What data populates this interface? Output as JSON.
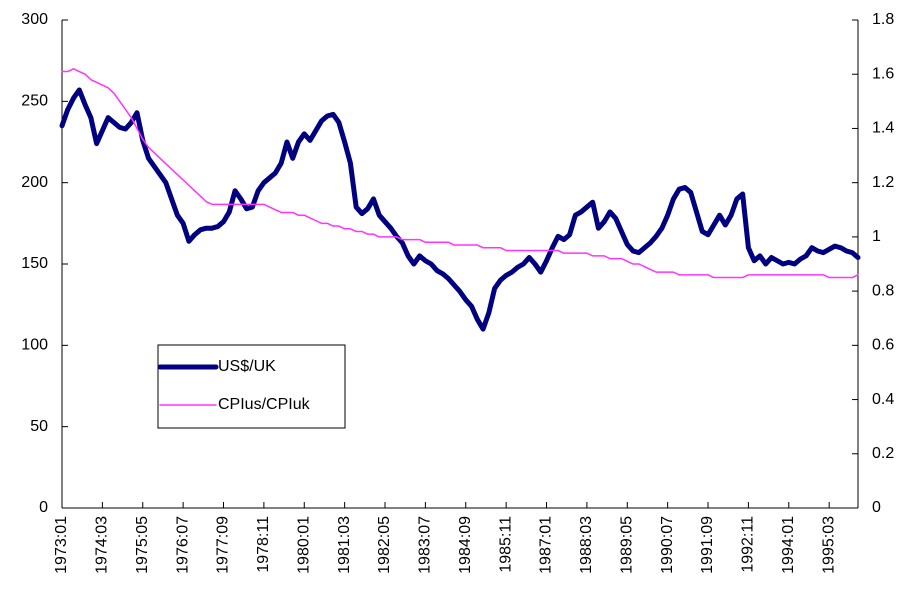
{
  "chart_data": {
    "type": "line",
    "categories": [
      "1973:01",
      null,
      null,
      null,
      null,
      null,
      null,
      "1974:03",
      null,
      null,
      null,
      null,
      null,
      null,
      "1975:05",
      null,
      null,
      null,
      null,
      null,
      null,
      "1976:07",
      null,
      null,
      null,
      null,
      null,
      null,
      "1977:09",
      null,
      null,
      null,
      null,
      null,
      null,
      "1978:11",
      null,
      null,
      null,
      null,
      null,
      null,
      "1980:01",
      null,
      null,
      null,
      null,
      null,
      null,
      "1981:03",
      null,
      null,
      null,
      null,
      null,
      null,
      "1982:05",
      null,
      null,
      null,
      null,
      null,
      null,
      "1983:07",
      null,
      null,
      null,
      null,
      null,
      null,
      "1984:09",
      null,
      null,
      null,
      null,
      null,
      null,
      "1985:11",
      null,
      null,
      null,
      null,
      null,
      null,
      "1987:01",
      null,
      null,
      null,
      null,
      null,
      null,
      "1988:03",
      null,
      null,
      null,
      null,
      null,
      null,
      "1989:05",
      null,
      null,
      null,
      null,
      null,
      null,
      "1990:07",
      null,
      null,
      null,
      null,
      null,
      null,
      "1991:09",
      null,
      null,
      null,
      null,
      null,
      null,
      "1992:11",
      null,
      null,
      null,
      null,
      null,
      null,
      "1994:01",
      null,
      null,
      null,
      null,
      null,
      null,
      "1995:03",
      null,
      null,
      null,
      null,
      null
    ],
    "series": [
      {
        "name": "US$/UK",
        "color": "#000080",
        "line_width": 5,
        "values": [
          235,
          245,
          252,
          257,
          248,
          240,
          224,
          232,
          240,
          237,
          234,
          233,
          237,
          243,
          226,
          215,
          210,
          205,
          200,
          190,
          180,
          175,
          164,
          168,
          171,
          172,
          172,
          173,
          176,
          182,
          195,
          190,
          184,
          185,
          195,
          200,
          203,
          206,
          212,
          225,
          215,
          225,
          230,
          226,
          232,
          238,
          241,
          242,
          237,
          225,
          212,
          185,
          181,
          184,
          190,
          180,
          176,
          172,
          167,
          163,
          155,
          150,
          155,
          152,
          150,
          146,
          144,
          141,
          137,
          133,
          128,
          124,
          116,
          110,
          120,
          135,
          140,
          143,
          145,
          148,
          150,
          154,
          150,
          145,
          152,
          160,
          167,
          165,
          168,
          180,
          182,
          185,
          188,
          172,
          176,
          182,
          178,
          170,
          162,
          158,
          157,
          160,
          163,
          167,
          172,
          180,
          190,
          196,
          197,
          194,
          182,
          170,
          168,
          174,
          180,
          174,
          180,
          190,
          193,
          160,
          152,
          155,
          150,
          154,
          152,
          150,
          151,
          150,
          153,
          155,
          160,
          158,
          157,
          159,
          161,
          160,
          158,
          157,
          154
        ]
      },
      {
        "name": "CPIus/CPIuk",
        "color": "#ff33ff",
        "line_width": 1.5,
        "axis": "y2",
        "values": [
          1.61,
          1.61,
          1.62,
          1.61,
          1.6,
          1.58,
          1.57,
          1.56,
          1.55,
          1.53,
          1.5,
          1.47,
          1.44,
          1.4,
          1.36,
          1.33,
          1.31,
          1.29,
          1.27,
          1.25,
          1.23,
          1.21,
          1.19,
          1.17,
          1.15,
          1.13,
          1.12,
          1.12,
          1.12,
          1.12,
          1.12,
          1.12,
          1.12,
          1.12,
          1.12,
          1.12,
          1.11,
          1.1,
          1.09,
          1.09,
          1.09,
          1.08,
          1.08,
          1.07,
          1.06,
          1.05,
          1.05,
          1.04,
          1.04,
          1.03,
          1.03,
          1.02,
          1.02,
          1.01,
          1.01,
          1.0,
          1.0,
          1.0,
          1.0,
          0.99,
          0.99,
          0.99,
          0.99,
          0.98,
          0.98,
          0.98,
          0.98,
          0.98,
          0.97,
          0.97,
          0.97,
          0.97,
          0.97,
          0.96,
          0.96,
          0.96,
          0.96,
          0.95,
          0.95,
          0.95,
          0.95,
          0.95,
          0.95,
          0.95,
          0.95,
          0.95,
          0.95,
          0.94,
          0.94,
          0.94,
          0.94,
          0.94,
          0.93,
          0.93,
          0.93,
          0.92,
          0.92,
          0.92,
          0.91,
          0.9,
          0.9,
          0.89,
          0.88,
          0.87,
          0.87,
          0.87,
          0.87,
          0.86,
          0.86,
          0.86,
          0.86,
          0.86,
          0.86,
          0.85,
          0.85,
          0.85,
          0.85,
          0.85,
          0.85,
          0.86,
          0.86,
          0.86,
          0.86,
          0.86,
          0.86,
          0.86,
          0.86,
          0.86,
          0.86,
          0.86,
          0.86,
          0.86,
          0.86,
          0.85,
          0.85,
          0.85,
          0.85,
          0.85,
          0.86
        ]
      }
    ],
    "ylim": [
      0,
      300
    ],
    "yticks": [
      0,
      50,
      100,
      150,
      200,
      250,
      300
    ],
    "y2lim": [
      0,
      1.8
    ],
    "y2ticks": [
      0,
      0.2,
      0.4,
      0.6,
      0.8,
      1,
      1.2,
      1.4,
      1.6,
      1.8
    ],
    "grid": false,
    "legend": "left"
  }
}
